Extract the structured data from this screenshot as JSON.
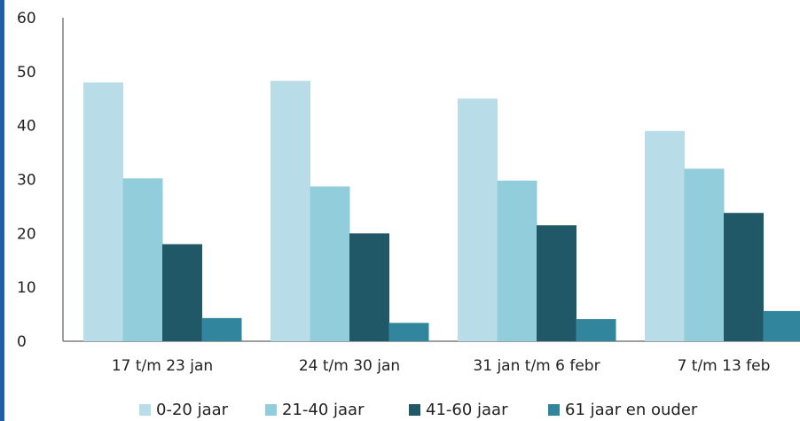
{
  "chart_data": {
    "type": "bar",
    "categories": [
      "17 t/m 23 jan",
      "24 t/m 30 jan",
      "31 jan t/m 6 febr",
      "7 t/m 13 feb"
    ],
    "series": [
      {
        "name": "0-20 jaar",
        "color": "#b8dde8",
        "values": [
          48,
          48.3,
          45,
          39
        ]
      },
      {
        "name": "21-40 jaar",
        "color": "#92cddc",
        "values": [
          30.2,
          28.7,
          29.8,
          32
        ]
      },
      {
        "name": "41-60 jaar",
        "color": "#215868",
        "values": [
          18,
          20,
          21.5,
          23.8
        ]
      },
      {
        "name": "61 jaar en ouder",
        "color": "#31859c",
        "values": [
          4.3,
          3.4,
          4.1,
          5.6
        ]
      }
    ],
    "yticks": [
      0,
      10,
      20,
      30,
      40,
      50,
      60
    ],
    "ylim": [
      0,
      60
    ],
    "title": "",
    "xlabel": "",
    "ylabel": "",
    "legend_position": "bottom",
    "grid": false
  }
}
